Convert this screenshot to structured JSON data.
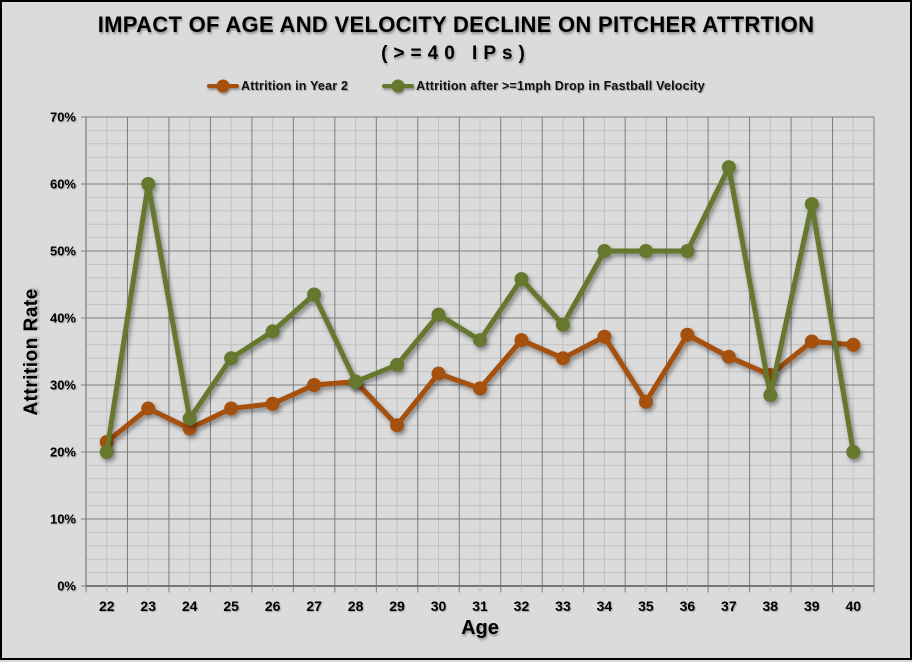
{
  "chart_data": {
    "type": "line",
    "title": "IMPACT OF AGE AND VELOCITY DECLINE ON PITCHER ATTRTION",
    "subtitle": "(>=40 IPs)",
    "xlabel": "Age",
    "ylabel": "Attrition Rate",
    "categories": [
      22,
      23,
      24,
      25,
      26,
      27,
      28,
      29,
      30,
      31,
      32,
      33,
      34,
      35,
      36,
      37,
      38,
      39,
      40
    ],
    "series": [
      {
        "name": "Attrition in Year 2",
        "color": "#A6500E",
        "values": [
          21.5,
          26.5,
          23.5,
          26.5,
          27.2,
          30,
          30.5,
          24,
          31.7,
          29.5,
          36.7,
          34,
          37.2,
          27.5,
          37.5,
          34.2,
          31.5,
          36.5,
          36
        ]
      },
      {
        "name": "Attrition after >=1mph Drop in Fastball Velocity",
        "color": "#66782E",
        "values": [
          20,
          60,
          25,
          34,
          38,
          43.5,
          30.5,
          33,
          40.5,
          36.7,
          45.8,
          39,
          50,
          50,
          50,
          62.5,
          28.5,
          57,
          20
        ]
      }
    ],
    "ylim": [
      0,
      70
    ],
    "ytick_step": 10,
    "ytick_labels": [
      "0%",
      "10%",
      "20%",
      "30%",
      "40%",
      "50%",
      "60%",
      "70%"
    ],
    "minor_y_step": 2,
    "grid": {
      "background": "#DBDBDB",
      "minor_color": "#C1C1C1",
      "major_color": "#7D7D7D",
      "axis_color": "#555555"
    },
    "legend_position": "top"
  }
}
